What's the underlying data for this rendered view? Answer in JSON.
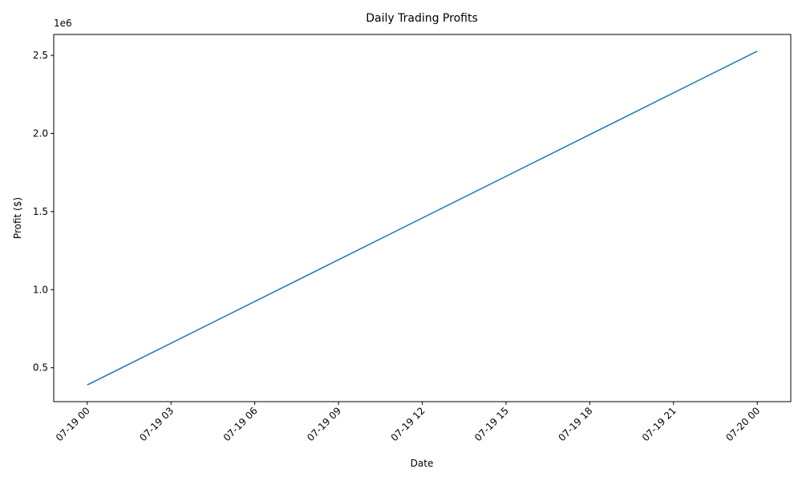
{
  "chart_data": {
    "type": "line",
    "title": "Daily Trading Profits",
    "xlabel": "Date",
    "ylabel": "Profit ($)",
    "y_offset_label": "1e6",
    "x_ticks": [
      "07-19 00",
      "07-19 03",
      "07-19 06",
      "07-19 09",
      "07-19 12",
      "07-19 15",
      "07-19 18",
      "07-19 21",
      "07-20 00"
    ],
    "x_tick_hours": [
      0,
      3,
      6,
      9,
      12,
      15,
      18,
      21,
      24
    ],
    "y_ticks": [
      "0.5",
      "1.0",
      "1.5",
      "2.0",
      "2.5"
    ],
    "y_tick_values": [
      0.5,
      1.0,
      1.5,
      2.0,
      2.5
    ],
    "xlim_hours": [
      -1.2,
      25.2
    ],
    "ylim": [
      0.283,
      2.634
    ],
    "series": [
      {
        "color": "#1f77b4",
        "x_hours": [
          0,
          24
        ],
        "y": [
          0.39,
          2.527
        ]
      }
    ],
    "grid": false
  }
}
